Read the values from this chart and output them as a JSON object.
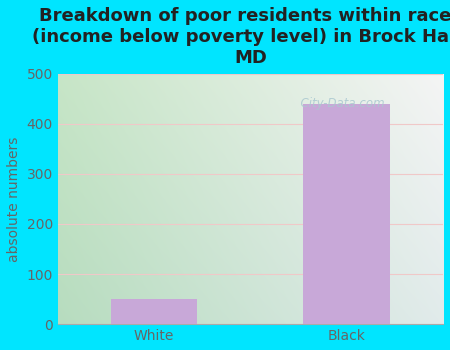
{
  "categories": [
    "White",
    "Black"
  ],
  "values": [
    50,
    440
  ],
  "bar_color": "#c8a8d8",
  "title": "Breakdown of poor residents within races\n(income below poverty level) in Brock Hall,\nMD",
  "ylabel": "absolute numbers",
  "ylim": [
    0,
    500
  ],
  "yticks": [
    0,
    100,
    200,
    300,
    400,
    500
  ],
  "background_outer": "#00e5ff",
  "title_fontsize": 13,
  "axis_label_fontsize": 10,
  "tick_fontsize": 10,
  "bar_width": 0.45,
  "watermark": "  City-Data.com"
}
